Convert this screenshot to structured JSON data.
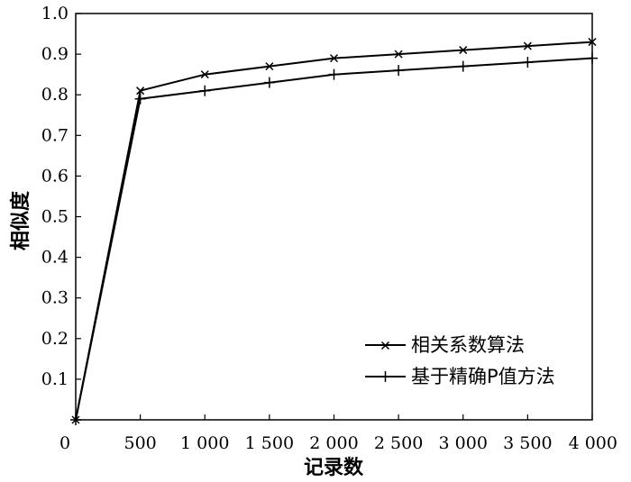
{
  "chart_data": {
    "type": "line",
    "xlabel": "记录数",
    "ylabel": "相似度",
    "x_ticks": [
      0,
      500,
      1000,
      1500,
      2000,
      2500,
      3000,
      3500,
      4000
    ],
    "x_tick_labels": [
      "0",
      "500",
      "1 000",
      "1 500",
      "2 000",
      "2 500",
      "3 000",
      "3 500",
      "4 000"
    ],
    "y_ticks": [
      0.1,
      0.2,
      0.3,
      0.4,
      0.5,
      0.6,
      0.7,
      0.8,
      0.9,
      1.0
    ],
    "y_tick_labels": [
      "0.1",
      "0.2",
      "0.3",
      "0.4",
      "0.5",
      "0.6",
      "0.7",
      "0.8",
      "0.9",
      "1.0"
    ],
    "xlim": [
      0,
      4000
    ],
    "ylim": [
      0,
      1.0
    ],
    "grid": false,
    "legend_position": "bottom-right",
    "x": [
      0,
      500,
      1000,
      1500,
      2000,
      2500,
      3000,
      3500,
      4000
    ],
    "series": [
      {
        "name": "相关系数算法",
        "marker": "x",
        "values": [
          0.0,
          0.81,
          0.85,
          0.87,
          0.89,
          0.9,
          0.91,
          0.92,
          0.93
        ]
      },
      {
        "name": "基于精确P值方法",
        "marker": "plus",
        "values": [
          0.0,
          0.79,
          0.81,
          0.83,
          0.85,
          0.86,
          0.87,
          0.88,
          0.89
        ]
      }
    ]
  }
}
